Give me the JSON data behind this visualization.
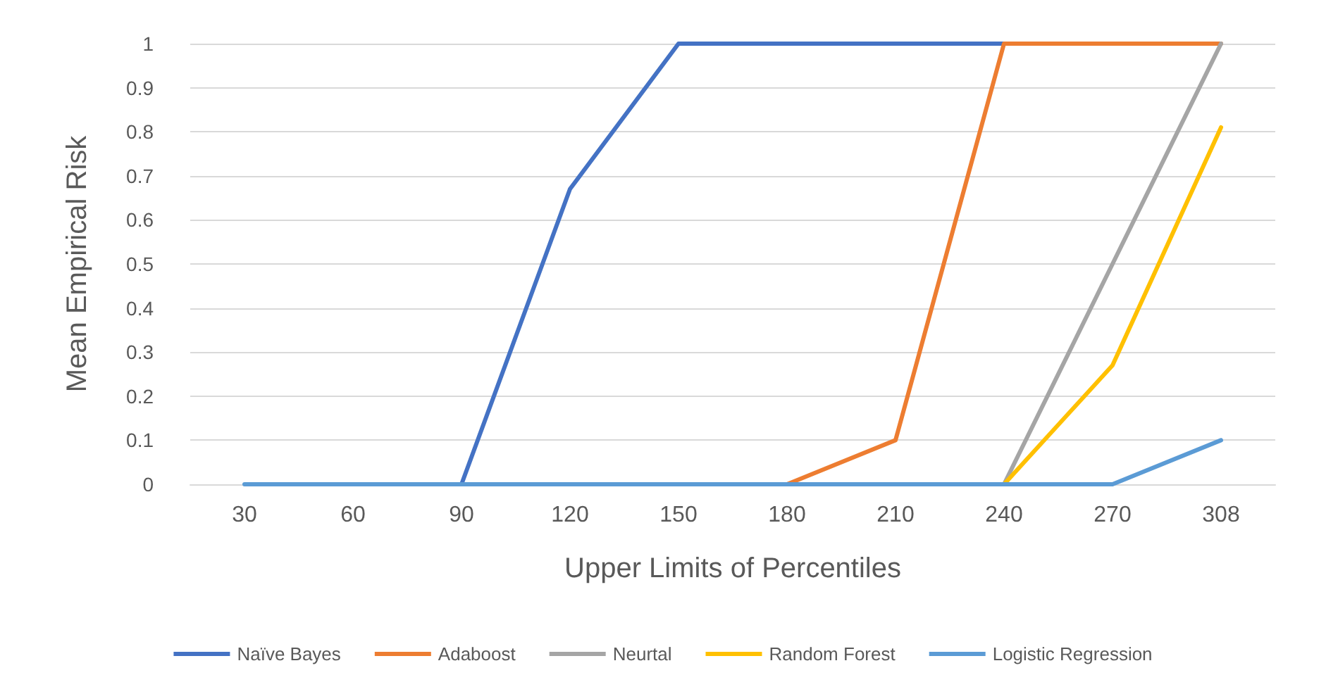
{
  "chart_data": {
    "type": "line",
    "xlabel": "Upper Limits of Percentiles",
    "ylabel": "Mean Empirical Risk",
    "categories": [
      "30",
      "60",
      "90",
      "120",
      "150",
      "180",
      "210",
      "240",
      "270",
      "308"
    ],
    "series": [
      {
        "name": "Naïve Bayes",
        "color": "#4472c4",
        "values": [
          null,
          null,
          0,
          0.67,
          1,
          1,
          1,
          1,
          null,
          null
        ]
      },
      {
        "name": "Adaboost",
        "color": "#ed7d31",
        "values": [
          null,
          null,
          null,
          null,
          null,
          0,
          0.1,
          1,
          1,
          1
        ]
      },
      {
        "name": "Neurtal",
        "color": "#a5a5a5",
        "values": [
          null,
          null,
          null,
          null,
          null,
          null,
          null,
          0,
          0.5,
          1
        ]
      },
      {
        "name": "Random Forest",
        "color": "#ffc000",
        "values": [
          null,
          null,
          null,
          null,
          null,
          null,
          null,
          0,
          0.27,
          0.81
        ]
      },
      {
        "name": "Logistic Regression",
        "color": "#5b9bd5",
        "values": [
          0,
          0,
          0,
          0,
          0,
          0,
          0,
          0,
          0,
          0.1
        ]
      }
    ],
    "ylim": [
      0,
      1
    ],
    "yticks": [
      0,
      0.1,
      0.2,
      0.3,
      0.4,
      0.5,
      0.6,
      0.7,
      0.8,
      0.9,
      1
    ],
    "grid": "y",
    "legend": "bottom",
    "marker": "none",
    "line_style": "solid"
  }
}
